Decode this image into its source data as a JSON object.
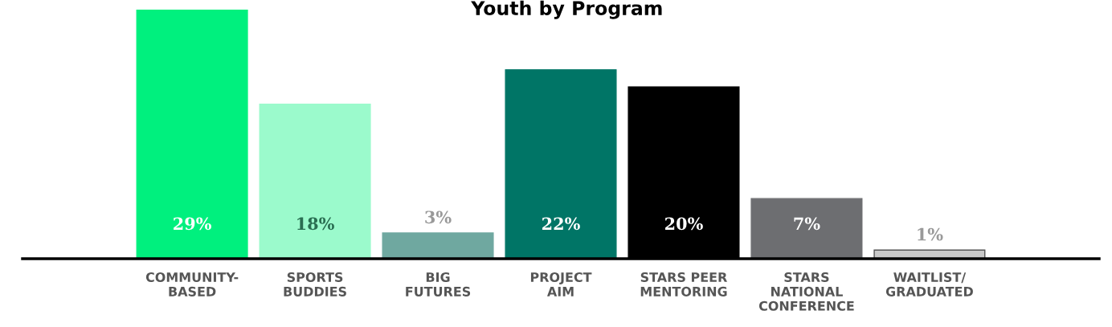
{
  "chart_data": {
    "type": "bar",
    "title": "Youth by Program",
    "categories": [
      "COMMUNITY-\nBASED",
      "SPORTS\nBUDDIES",
      "BIG\nFUTURES",
      "PROJECT\nAIM",
      "STARS PEER\nMENTORING",
      "STARS\nNATIONAL\nCONFERENCE",
      "WAITLIST/\nGRADUATED"
    ],
    "values": [
      29,
      18,
      3,
      22,
      20,
      7,
      1
    ],
    "colors": [
      "#00f07e",
      "#9bfacc",
      "#6fa8a0",
      "#007566",
      "#000000",
      "#6d6e71",
      "#c8c8c8"
    ],
    "value_labels": [
      "29%",
      "18%",
      "3%",
      "22%",
      "20%",
      "7%",
      "1%"
    ],
    "grid": false,
    "legend": false
  }
}
